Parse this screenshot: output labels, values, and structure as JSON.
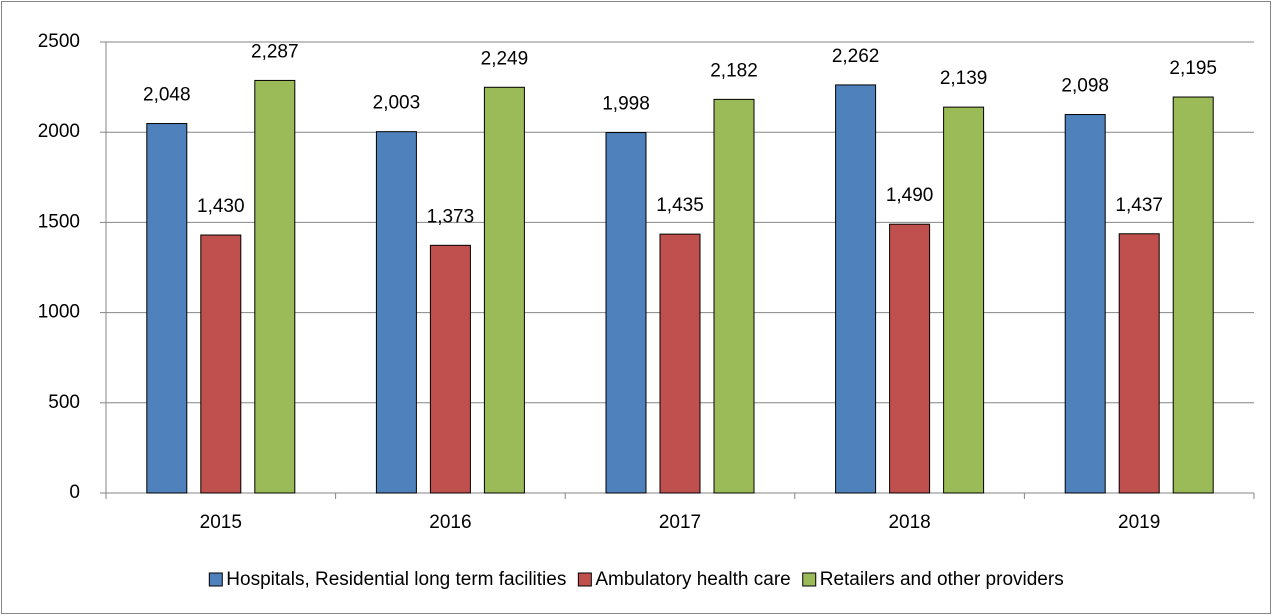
{
  "chart_data": {
    "type": "bar",
    "categories": [
      "2015",
      "2016",
      "2017",
      "2018",
      "2019"
    ],
    "series": [
      {
        "name": "Hospitals, Residential long term facilities",
        "color": "#4f81bd",
        "values": [
          2048,
          2003,
          1998,
          2262,
          2098
        ],
        "value_labels": [
          "2,048",
          "2,003",
          "1,998",
          "2,262",
          "2,098"
        ]
      },
      {
        "name": "Ambulatory health care",
        "color": "#c0504d",
        "values": [
          1430,
          1373,
          1435,
          1490,
          1437
        ],
        "value_labels": [
          "1,430",
          "1,373",
          "1,435",
          "1,490",
          "1,437"
        ]
      },
      {
        "name": "Retailers and other providers",
        "color": "#9bbb59",
        "values": [
          2287,
          2249,
          2182,
          2139,
          2195
        ],
        "value_labels": [
          "2,287",
          "2,249",
          "2,182",
          "2,139",
          "2,195"
        ]
      }
    ],
    "ylim": [
      0,
      2500
    ],
    "yticks": [
      0,
      500,
      1000,
      1500,
      2000,
      2500
    ],
    "grid": true,
    "legend": "bottom"
  }
}
